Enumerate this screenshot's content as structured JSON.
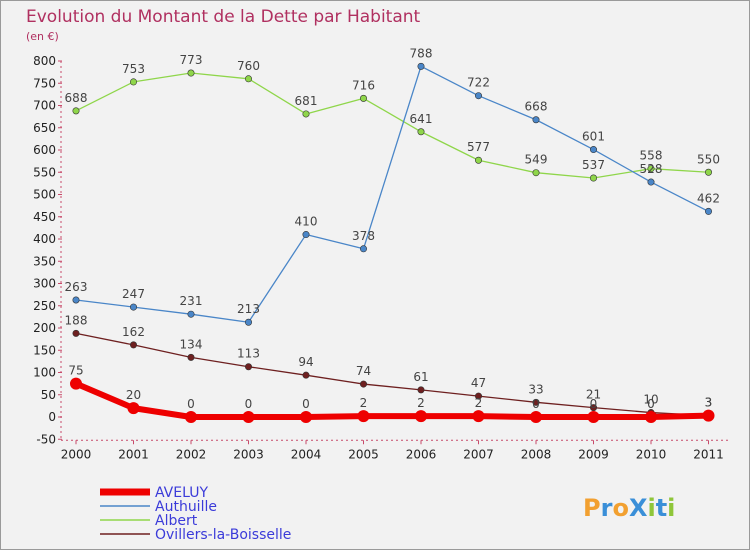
{
  "chart_data": {
    "type": "line",
    "title": "Evolution du Montant de la Dette par Habitant",
    "subtitle": "(en €)",
    "categories": [
      "2000",
      "2001",
      "2002",
      "2003",
      "2004",
      "2005",
      "2006",
      "2007",
      "2008",
      "2009",
      "2010",
      "2011"
    ],
    "ylim": [
      -50,
      800
    ],
    "yticks": [
      -50,
      0,
      50,
      100,
      150,
      200,
      250,
      300,
      350,
      400,
      450,
      500,
      550,
      600,
      650,
      700,
      750,
      800
    ],
    "grid": false,
    "legend_position": "bottom-left",
    "series": [
      {
        "name": "AVELUY",
        "color": "#ee0000",
        "values": [
          75,
          20,
          0,
          0,
          0,
          2,
          2,
          2,
          0,
          0,
          0,
          3
        ]
      },
      {
        "name": "Authuille",
        "color": "#4a86c8",
        "values": [
          263,
          247,
          231,
          213,
          410,
          378,
          788,
          722,
          668,
          601,
          528,
          462
        ]
      },
      {
        "name": "Albert",
        "color": "#8fd64a",
        "values": [
          688,
          753,
          773,
          760,
          681,
          716,
          641,
          577,
          549,
          537,
          558,
          550
        ]
      },
      {
        "name": "Ovillers-la-Boisselle",
        "color": "#6e2020",
        "values": [
          188,
          162,
          134,
          113,
          94,
          74,
          61,
          47,
          33,
          21,
          10,
          3
        ]
      }
    ]
  },
  "logo": {
    "text": "ProXiti"
  }
}
